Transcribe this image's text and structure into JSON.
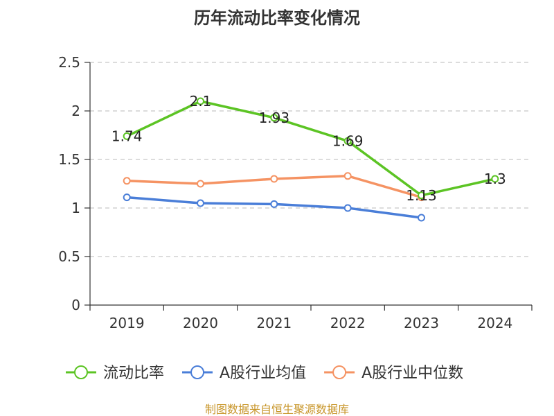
{
  "chart_data": {
    "type": "line",
    "title": "历年流动比率变化情况",
    "categories": [
      "2019",
      "2020",
      "2021",
      "2022",
      "2023",
      "2024"
    ],
    "ylim": [
      0,
      2.5
    ],
    "yticks": [
      "0",
      "0.5",
      "1",
      "1.5",
      "2",
      "2.5"
    ],
    "ytick_values": [
      0,
      0.5,
      1,
      1.5,
      2,
      2.5
    ],
    "grid": true,
    "legend_position": "bottom",
    "series": [
      {
        "name": "流动比率",
        "color": "#5cc424",
        "values": [
          1.74,
          2.1,
          1.93,
          1.69,
          1.13,
          1.3
        ],
        "labels": [
          "1.74",
          "2.1",
          "1.93",
          "1.69",
          "1.13",
          "1.3"
        ]
      },
      {
        "name": "A股行业均值",
        "color": "#4a7ed8",
        "values": [
          1.11,
          1.05,
          1.04,
          1.0,
          0.9,
          null
        ]
      },
      {
        "name": "A股行业中位数",
        "color": "#f59363",
        "values": [
          1.28,
          1.25,
          1.3,
          1.33,
          1.11,
          null
        ]
      }
    ],
    "source": "制图数据来自恒生聚源数据库"
  }
}
